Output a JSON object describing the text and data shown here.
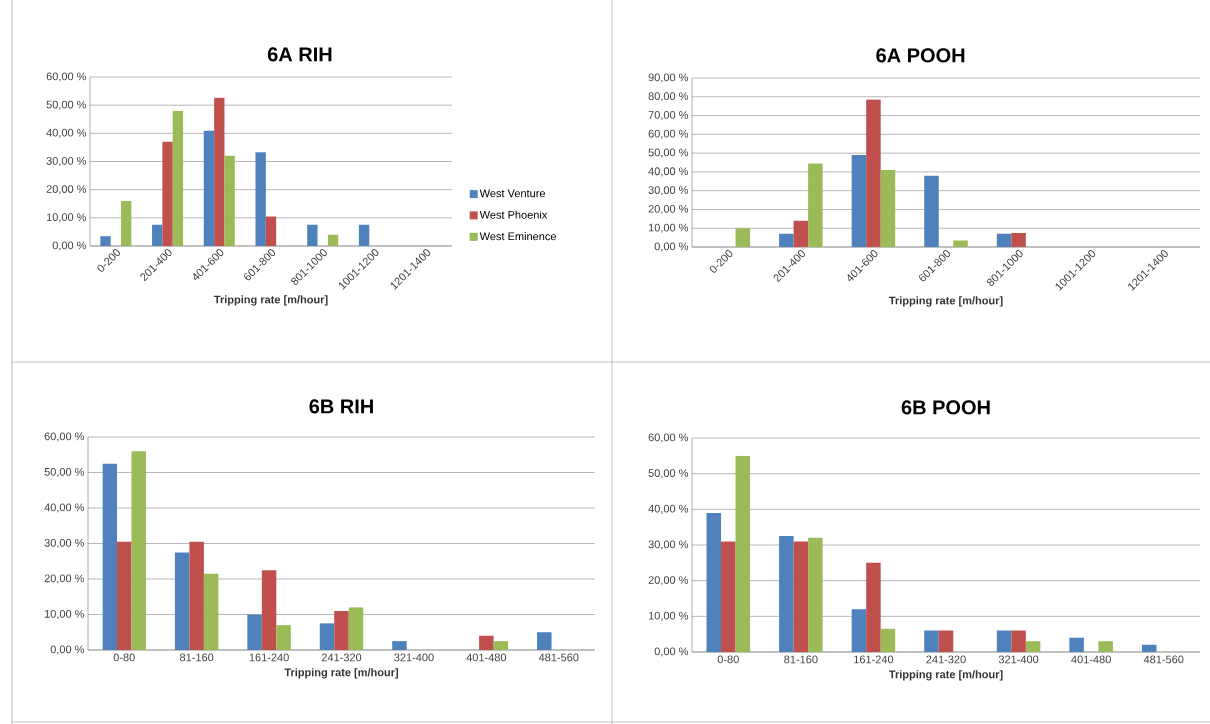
{
  "chart_data": [
    {
      "type": "bar",
      "title": "6A RIH",
      "xlabel": "Tripping rate [m/hour]",
      "categories": [
        "0-200",
        "201-400",
        "401-600",
        "601-800",
        "801-1000",
        "1001-1200",
        "1201-1400"
      ],
      "series": [
        {
          "name": "West Venture",
          "color": "#4f81bd",
          "values": [
            3.5,
            7.5,
            41,
            33.3,
            7.5,
            7.5,
            0
          ]
        },
        {
          "name": "West Phoenix",
          "color": "#c0504d",
          "values": [
            0,
            37,
            52.6,
            10.5,
            0,
            0,
            0
          ]
        },
        {
          "name": "West Eminence",
          "color": "#9bbb59",
          "values": [
            16,
            48,
            32,
            0,
            4,
            0,
            0
          ]
        }
      ],
      "ylim": [
        0,
        60
      ],
      "yticks": [
        {
          "value": 0,
          "label": "0,00 %"
        },
        {
          "value": 10,
          "label": "10,00 %"
        },
        {
          "value": 20,
          "label": "20,00 %"
        },
        {
          "value": 30,
          "label": "30,00 %"
        },
        {
          "value": 40,
          "label": "40,00 %"
        },
        {
          "value": 50,
          "label": "50,00 %"
        },
        {
          "value": 60,
          "label": "60,00 %"
        }
      ],
      "grid": "y",
      "legend": "right"
    },
    {
      "type": "bar",
      "title": "6A POOH",
      "xlabel": "Tripping rate [m/hour]",
      "categories": [
        "0-200",
        "201-400",
        "401-600",
        "601-800",
        "801-1000",
        "1001-1200",
        "1201-1400"
      ],
      "series": [
        {
          "color": "#4f81bd",
          "values": [
            0,
            7,
            49,
            38,
            7,
            0,
            0
          ]
        },
        {
          "color": "#c0504d",
          "values": [
            0,
            14,
            78.5,
            0,
            7.5,
            0,
            0
          ]
        },
        {
          "color": "#9bbb59",
          "values": [
            10,
            44.5,
            41,
            3.5,
            0,
            0,
            0
          ]
        }
      ],
      "ylim": [
        0,
        90
      ],
      "yticks": [
        {
          "value": 0,
          "label": "0,00 %"
        },
        {
          "value": 10,
          "label": "10,00 %"
        },
        {
          "value": 20,
          "label": "20,00 %"
        },
        {
          "value": 30,
          "label": "30,00 %"
        },
        {
          "value": 40,
          "label": "40,00 %"
        },
        {
          "value": 50,
          "label": "50,00 %"
        },
        {
          "value": 60,
          "label": "60,00 %"
        },
        {
          "value": 70,
          "label": "70,00 %"
        },
        {
          "value": 80,
          "label": "80,00 %"
        },
        {
          "value": 90,
          "label": "90,00 %"
        }
      ],
      "grid": "y"
    },
    {
      "type": "bar",
      "title": "6B RIH",
      "xlabel": "Tripping rate [m/hour]",
      "categories": [
        "0-80",
        "81-160",
        "161-240",
        "241-320",
        "321-400",
        "401-480",
        "481-560"
      ],
      "series": [
        {
          "color": "#4f81bd",
          "values": [
            52.5,
            27.5,
            10,
            7.5,
            2.5,
            0,
            5
          ]
        },
        {
          "color": "#c0504d",
          "values": [
            30.5,
            30.5,
            22.5,
            11,
            0,
            4,
            0
          ]
        },
        {
          "color": "#9bbb59",
          "values": [
            56,
            21.5,
            7,
            12,
            0,
            2.5,
            0
          ]
        }
      ],
      "ylim": [
        0,
        60
      ],
      "yticks": [
        {
          "value": 0,
          "label": "0,00 %"
        },
        {
          "value": 10,
          "label": "10,00 %"
        },
        {
          "value": 20,
          "label": "20,00 %"
        },
        {
          "value": 30,
          "label": "30,00 %"
        },
        {
          "value": 40,
          "label": "40,00 %"
        },
        {
          "value": 50,
          "label": "50,00 %"
        },
        {
          "value": 60,
          "label": "60,00 %"
        }
      ],
      "grid": "y"
    },
    {
      "type": "bar",
      "title": "6B POOH",
      "xlabel": "Tripping rate [m/hour]",
      "categories": [
        "0-80",
        "81-160",
        "161-240",
        "241-320",
        "321-400",
        "401-480",
        "481-560"
      ],
      "series": [
        {
          "color": "#4f81bd",
          "values": [
            39,
            32.5,
            12,
            6,
            6,
            4,
            2
          ]
        },
        {
          "color": "#c0504d",
          "values": [
            31,
            31,
            25,
            6,
            6,
            0,
            0
          ]
        },
        {
          "color": "#9bbb59",
          "values": [
            55,
            32,
            6.5,
            0,
            3,
            3,
            0
          ]
        }
      ],
      "ylim": [
        0,
        60
      ],
      "yticks": [
        {
          "value": 0,
          "label": "0,00 %"
        },
        {
          "value": 10,
          "label": "10,00 %"
        },
        {
          "value": 20,
          "label": "20,00 %"
        },
        {
          "value": 30,
          "label": "30,00 %"
        },
        {
          "value": 40,
          "label": "40,00 %"
        },
        {
          "value": 50,
          "label": "50,00 %"
        },
        {
          "value": 60,
          "label": "60,00 %"
        }
      ],
      "grid": "y"
    }
  ]
}
